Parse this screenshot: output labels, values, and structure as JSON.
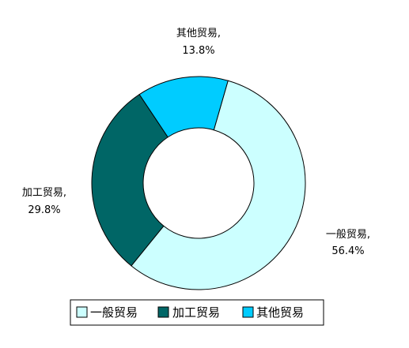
{
  "chart_data": {
    "type": "pie",
    "variant": "donut",
    "title": "",
    "slices": [
      {
        "name": "一般贸易",
        "value": 56.4,
        "label_name": "一般贸易,",
        "label_value": "56.4%",
        "color": "#ccffff"
      },
      {
        "name": "加工贸易",
        "value": 29.8,
        "label_name": "加工贸易,",
        "label_value": "29.8%",
        "color": "#006666"
      },
      {
        "name": "其他贸易",
        "value": 13.8,
        "label_name": "其他贸易,",
        "label_value": "13.8%",
        "color": "#00ccff"
      }
    ],
    "legend": {
      "placement": "bottom",
      "items": [
        "一般贸易",
        "加工贸易",
        "其他贸易"
      ]
    },
    "stroke_color": "#000000"
  }
}
